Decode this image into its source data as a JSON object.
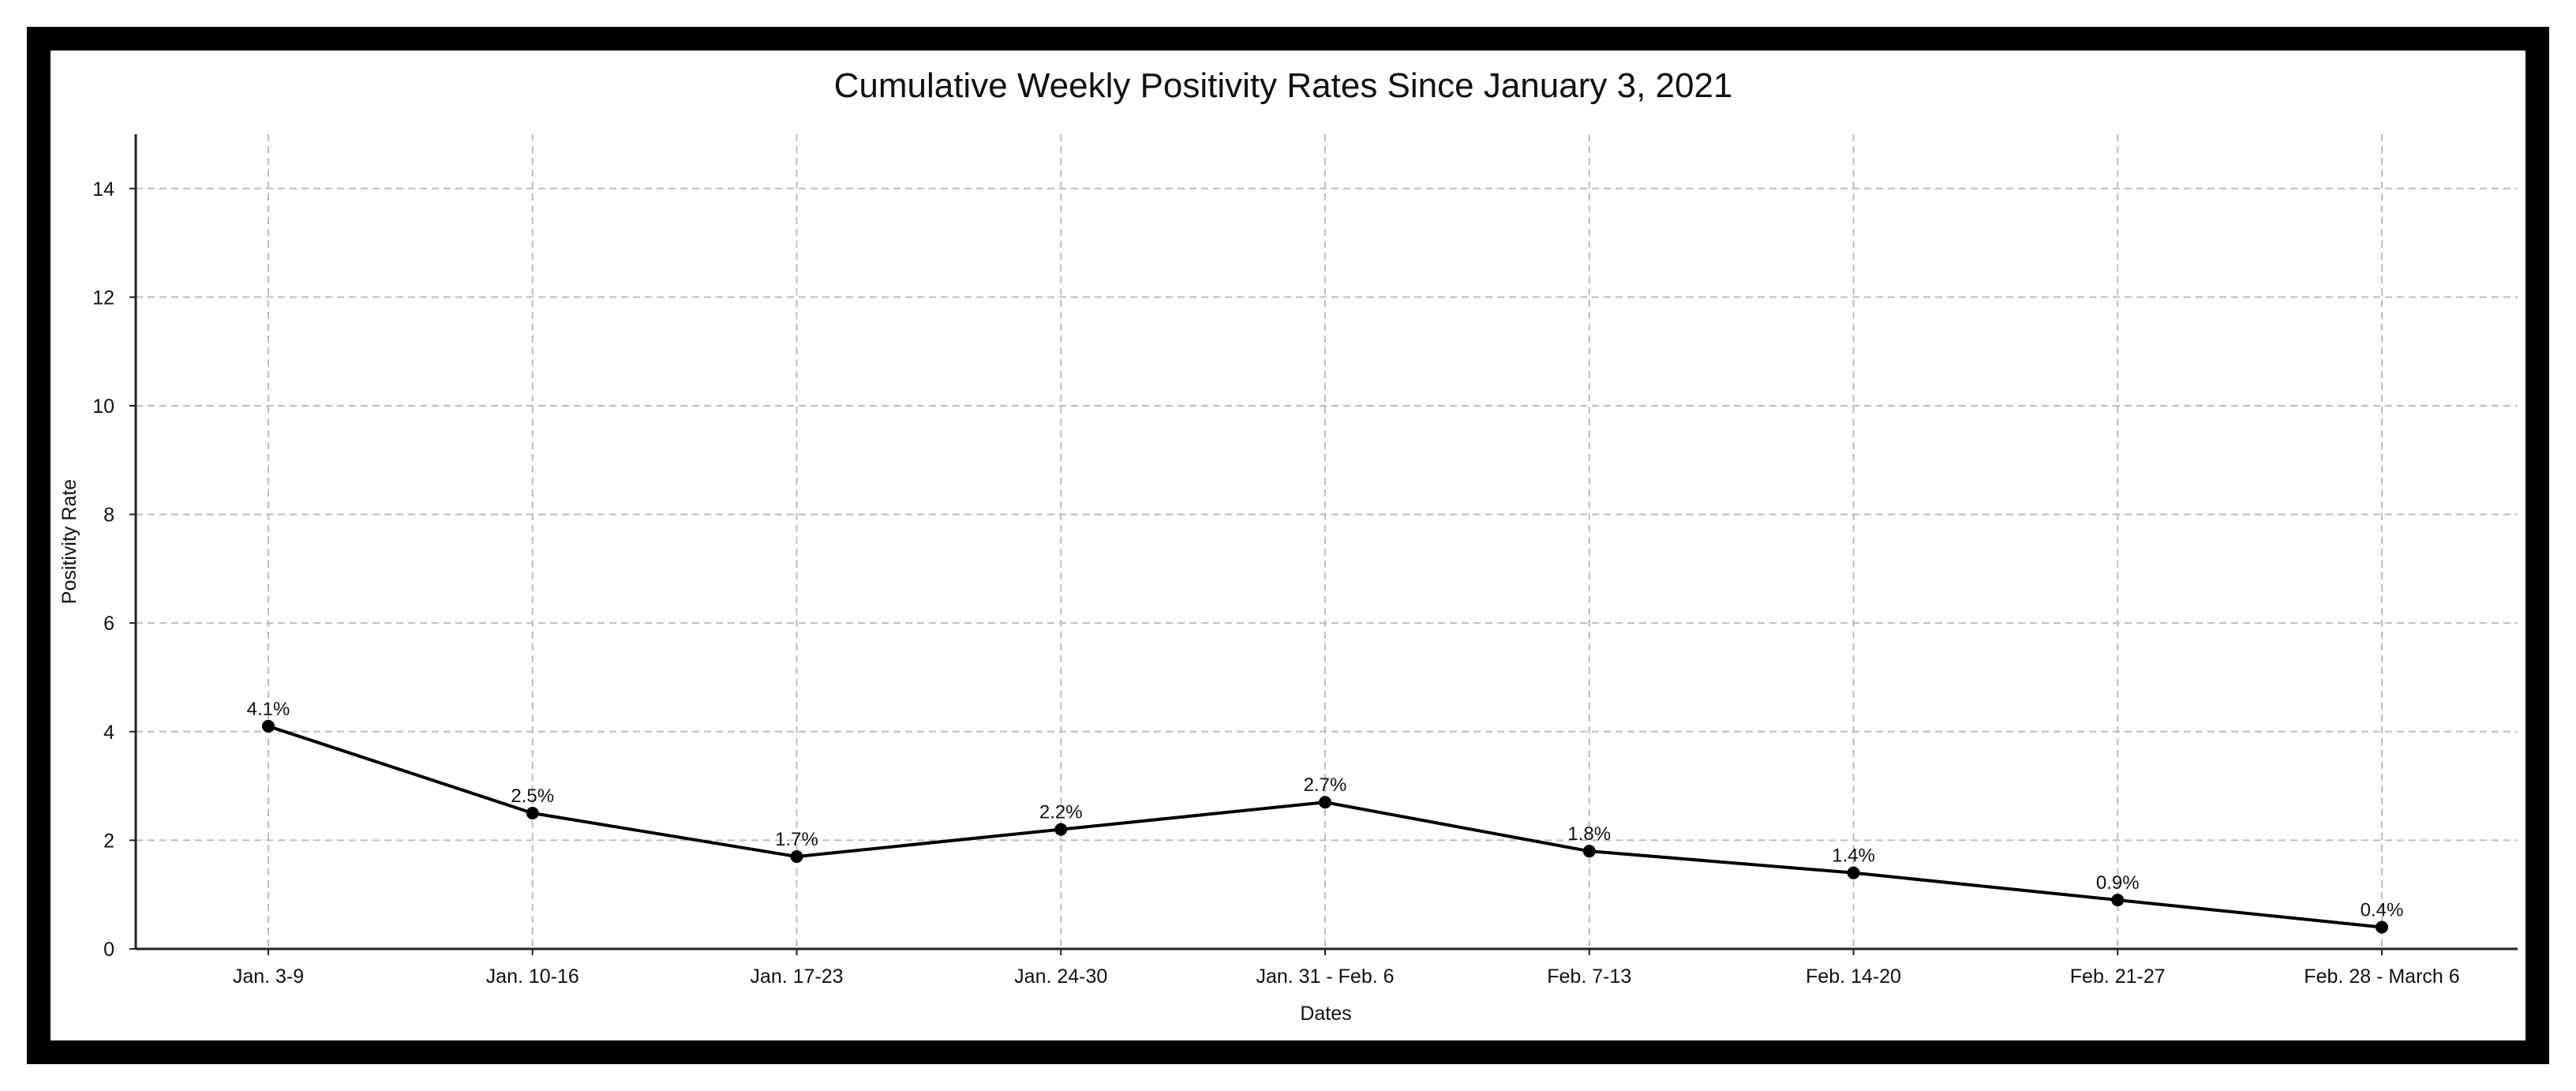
{
  "chart_data": {
    "type": "line",
    "title": "Cumulative Weekly Positivity Rates Since January 3, 2021",
    "xlabel": "Dates",
    "ylabel": "Positivity Rate",
    "categories": [
      "Jan. 3-9",
      "Jan. 10-16",
      "Jan. 17-23",
      "Jan. 24-30",
      "Jan. 31 - Feb. 6",
      "Feb. 7-13",
      "Feb. 14-20",
      "Feb. 21-27",
      "Feb. 28 - March 6"
    ],
    "series": [
      {
        "values": [
          4.1,
          2.5,
          1.7,
          2.2,
          2.7,
          1.8,
          1.4,
          0.9,
          0.4
        ],
        "labels": [
          "4.1%",
          "2.5%",
          "1.7%",
          "2.2%",
          "2.7%",
          "1.8%",
          "1.4%",
          "0.9%",
          "0.4%"
        ],
        "color": "#000000"
      }
    ],
    "ylim": [
      0,
      15
    ],
    "yticks": [
      0,
      2,
      4,
      6,
      8,
      10,
      12,
      14
    ],
    "grid": true,
    "grid_color": "#bdbdbd",
    "line_color": "#000000"
  }
}
